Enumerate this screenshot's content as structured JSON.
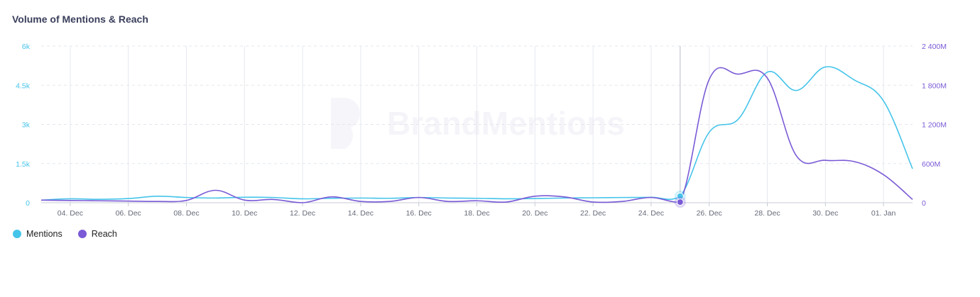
{
  "title": "Volume of Mentions & Reach",
  "watermark": "BrandMentions",
  "legend": [
    {
      "label": "Mentions",
      "color": "#45c4ea"
    },
    {
      "label": "Reach",
      "color": "#7a5ad6"
    }
  ],
  "chart_data": {
    "type": "line",
    "title": "Volume of Mentions & Reach",
    "x_tick_labels": [
      "04. Dec",
      "06. Dec",
      "08. Dec",
      "10. Dec",
      "12. Dec",
      "14. Dec",
      "16. Dec",
      "18. Dec",
      "20. Dec",
      "22. Dec",
      "24. Dec",
      "26. Dec",
      "28. Dec",
      "30. Dec",
      "01. Jan"
    ],
    "y_left": {
      "ticks": [
        "0",
        "1.5k",
        "3k",
        "4.5k",
        "6k"
      ],
      "min": 0,
      "max": 6000,
      "color": "#45c4ea"
    },
    "y_right": {
      "ticks": [
        "0",
        "600M",
        "1 200M",
        "1 800M",
        "2 400M"
      ],
      "min": 0,
      "max": 2400,
      "color": "#7a5ad6"
    },
    "x": [
      "03. Dec",
      "04. Dec",
      "05. Dec",
      "06. Dec",
      "07. Dec",
      "08. Dec",
      "09. Dec",
      "10. Dec",
      "11. Dec",
      "12. Dec",
      "13. Dec",
      "14. Dec",
      "15. Dec",
      "16. Dec",
      "17. Dec",
      "18. Dec",
      "19. Dec",
      "20. Dec",
      "21. Dec",
      "22. Dec",
      "23. Dec",
      "24. Dec",
      "25. Dec",
      "26. Dec",
      "27. Dec",
      "28. Dec",
      "29. Dec",
      "30. Dec",
      "31. Dec",
      "01. Jan",
      "02. Jan"
    ],
    "series": [
      {
        "name": "Mentions",
        "axis": "left",
        "color": "#45c4ea",
        "values": [
          100,
          150,
          130,
          160,
          250,
          200,
          180,
          210,
          200,
          150,
          170,
          180,
          170,
          200,
          180,
          170,
          150,
          160,
          180,
          190,
          200,
          210,
          250,
          2700,
          3200,
          5000,
          4300,
          5200,
          4700,
          3900,
          1300
        ]
      },
      {
        "name": "Reach",
        "axis": "right",
        "color": "#7a5ad6",
        "values": [
          40,
          35,
          30,
          25,
          20,
          35,
          190,
          40,
          50,
          0,
          90,
          20,
          20,
          80,
          20,
          30,
          10,
          100,
          90,
          10,
          20,
          80,
          10,
          1890,
          1970,
          1910,
          720,
          650,
          630,
          430,
          50
        ]
      }
    ],
    "highlight_index": 22,
    "grid": "on",
    "legend_position": "bottom-left"
  }
}
